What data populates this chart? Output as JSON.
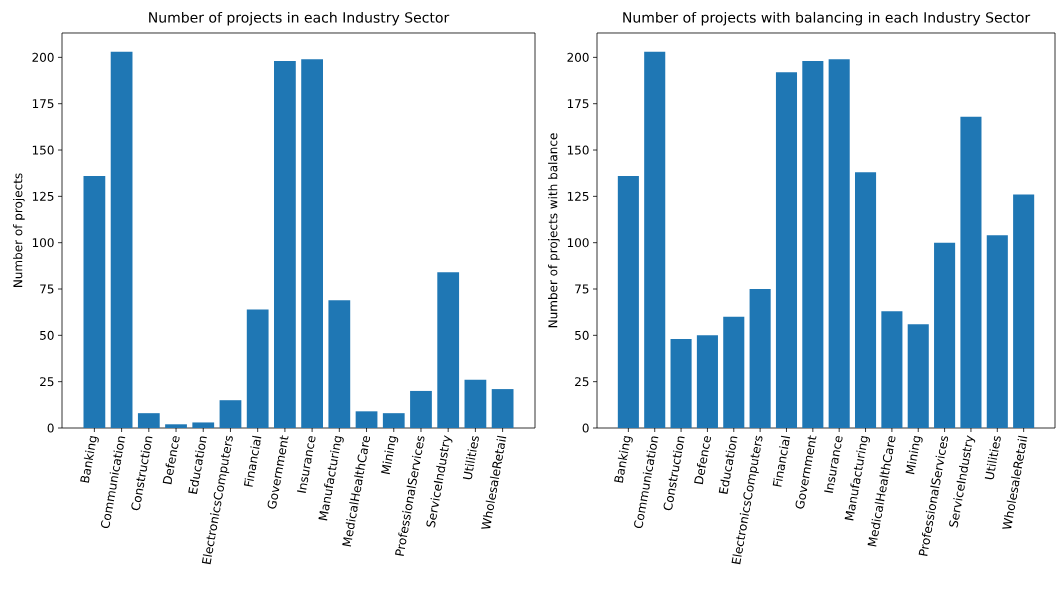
{
  "chart_data": [
    {
      "type": "bar",
      "title": "Number of projects in each Industry Sector",
      "ylabel": "Number of projects",
      "categories": [
        "Banking",
        "Communication",
        "Construction",
        "Defence",
        "Education",
        "ElectronicsComputers",
        "Financial",
        "Government",
        "Insurance",
        "Manufacturing",
        "MedicalHealthCare",
        "Mining",
        "ProfessionalServices",
        "ServiceIndustry",
        "Utilities",
        "WholesaleRetail"
      ],
      "values": [
        136,
        203,
        8,
        2,
        3,
        15,
        64,
        198,
        199,
        69,
        9,
        8,
        20,
        84,
        26,
        21
      ],
      "color": "#1f77b4",
      "ylim": [
        0,
        213.15
      ],
      "yticks": [
        0,
        25,
        50,
        75,
        100,
        125,
        150,
        175,
        200
      ]
    },
    {
      "type": "bar",
      "title": "Number of projects with balancing in each Industry Sector",
      "ylabel": "Number of projects with balance",
      "categories": [
        "Banking",
        "Communication",
        "Construction",
        "Defence",
        "Education",
        "ElectronicsComputers",
        "Financial",
        "Government",
        "Insurance",
        "Manufacturing",
        "MedicalHealthCare",
        "Mining",
        "ProfessionalServices",
        "ServiceIndustry",
        "Utilities",
        "WholesaleRetail"
      ],
      "values": [
        136,
        203,
        48,
        50,
        60,
        75,
        192,
        198,
        199,
        138,
        63,
        56,
        100,
        168,
        104,
        126
      ],
      "color": "#1f77b4",
      "ylim": [
        0,
        213.15
      ],
      "yticks": [
        0,
        25,
        50,
        75,
        100,
        125,
        150,
        175,
        200
      ]
    }
  ]
}
